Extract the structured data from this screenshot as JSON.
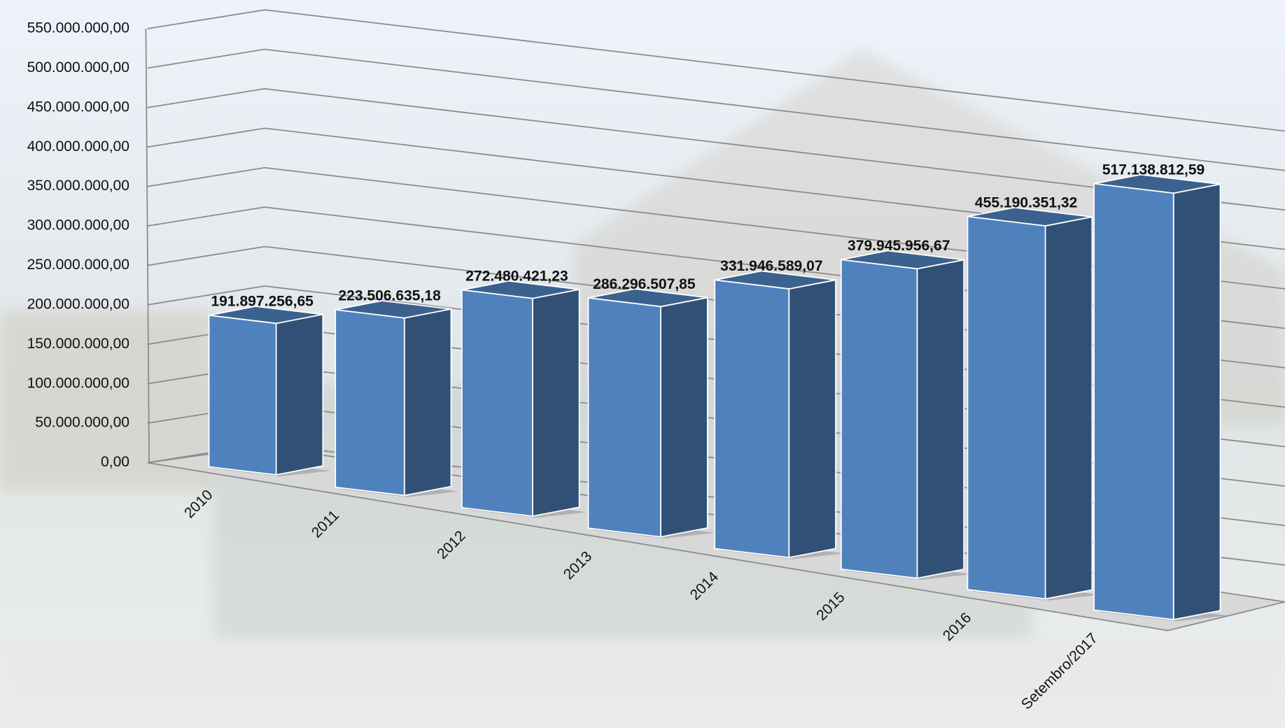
{
  "chart_data": {
    "type": "bar3d",
    "categories": [
      "2010",
      "2011",
      "2012",
      "2013",
      "2014",
      "2015",
      "2016",
      "Setembro/2017"
    ],
    "values": [
      191897256.65,
      223506635.18,
      272480421.23,
      286296507.85,
      331946589.07,
      379945956.67,
      455190351.32,
      517138812.59
    ],
    "value_labels": [
      "191.897.256,65",
      "223.506.635,18",
      "272.480.421,23",
      "286.296.507,85",
      "331.946.589,07",
      "379.945.956,67",
      "455.190.351,32",
      "517.138.812,59"
    ],
    "color": "#4f81bd",
    "ylim": [
      0,
      550000000
    ],
    "yticks": [
      {
        "value": 0,
        "label": "0,00"
      },
      {
        "value": 50000000,
        "label": "50.000.000,00"
      },
      {
        "value": 100000000,
        "label": "100.000.000,00"
      },
      {
        "value": 150000000,
        "label": "150.000.000,00"
      },
      {
        "value": 200000000,
        "label": "200.000.000,00"
      },
      {
        "value": 250000000,
        "label": "250.000.000,00"
      },
      {
        "value": 300000000,
        "label": "300.000.000,00"
      },
      {
        "value": 350000000,
        "label": "350.000.000,00"
      },
      {
        "value": 400000000,
        "label": "400.000.000,00"
      },
      {
        "value": 450000000,
        "label": "450.000.000,00"
      },
      {
        "value": 500000000,
        "label": "500.000.000,00"
      },
      {
        "value": 550000000,
        "label": "550.000.000,00"
      }
    ],
    "grid": true
  }
}
